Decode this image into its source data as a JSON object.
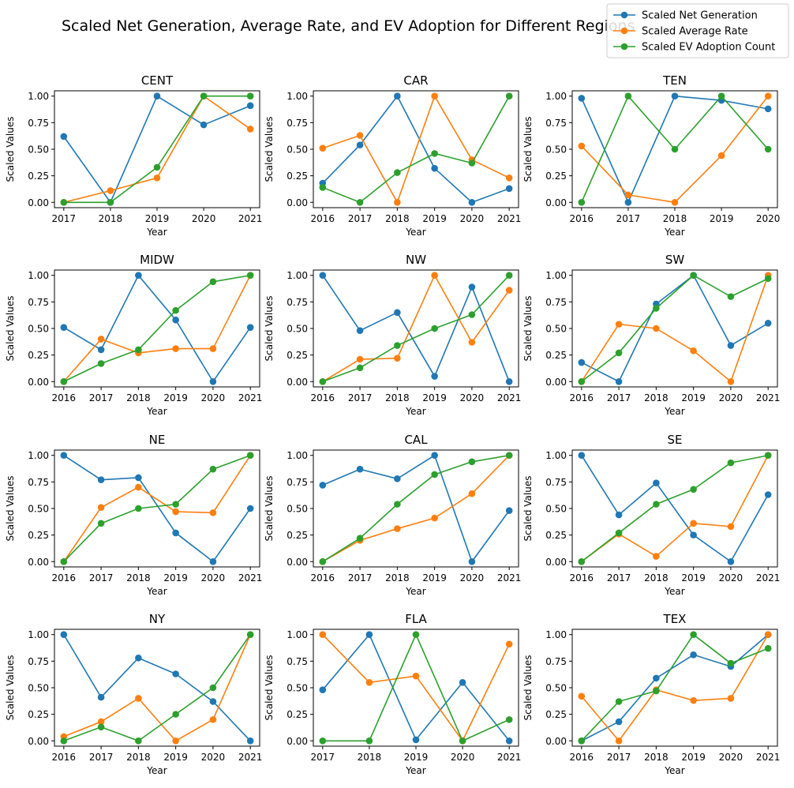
{
  "figure": {
    "title": "Scaled Net Generation, Average Rate, and EV Adoption for Different Regions"
  },
  "legend": {
    "placement": "top-right",
    "entries": [
      {
        "label": "Scaled Net Generation",
        "color": "#1f77b4"
      },
      {
        "label": "Scaled Average Rate",
        "color": "#ff7f0e"
      },
      {
        "label": "Scaled EV Adoption Count",
        "color": "#2ca02c"
      }
    ]
  },
  "chart_data": [
    {
      "type": "line",
      "title": "CENT",
      "xlabel": "Year",
      "ylabel": "Scaled Values",
      "x": [
        2017,
        2018,
        2019,
        2020,
        2021
      ],
      "ylim": [
        -0.05,
        1.05
      ],
      "yticks": [
        "0.00",
        "0.25",
        "0.50",
        "0.75",
        "1.00"
      ],
      "grid": false,
      "series": [
        {
          "name": "Scaled Net Generation",
          "color": "#1f77b4",
          "values": [
            0.62,
            0.0,
            1.0,
            0.73,
            0.91
          ]
        },
        {
          "name": "Scaled Average Rate",
          "color": "#ff7f0e",
          "values": [
            0.0,
            0.11,
            0.23,
            1.0,
            0.69
          ]
        },
        {
          "name": "Scaled EV Adoption Count",
          "color": "#2ca02c",
          "values": [
            0.0,
            0.0,
            0.33,
            1.0,
            1.0
          ]
        }
      ]
    },
    {
      "type": "line",
      "title": "CAR",
      "xlabel": "Year",
      "ylabel": "Scaled Values",
      "x": [
        2016,
        2017,
        2018,
        2019,
        2020,
        2021
      ],
      "ylim": [
        -0.05,
        1.05
      ],
      "yticks": [
        "0.00",
        "0.25",
        "0.50",
        "0.75",
        "1.00"
      ],
      "grid": false,
      "series": [
        {
          "name": "Scaled Net Generation",
          "color": "#1f77b4",
          "values": [
            0.18,
            0.54,
            1.0,
            0.32,
            0.0,
            0.13
          ]
        },
        {
          "name": "Scaled Average Rate",
          "color": "#ff7f0e",
          "values": [
            0.51,
            0.63,
            0.0,
            1.0,
            0.4,
            0.23
          ]
        },
        {
          "name": "Scaled EV Adoption Count",
          "color": "#2ca02c",
          "values": [
            0.14,
            0.0,
            0.28,
            0.46,
            0.37,
            1.0
          ]
        }
      ]
    },
    {
      "type": "line",
      "title": "TEN",
      "xlabel": "Year",
      "ylabel": "Scaled Values",
      "x": [
        2016,
        2017,
        2018,
        2019,
        2020
      ],
      "ylim": [
        -0.05,
        1.05
      ],
      "yticks": [
        "0.00",
        "0.25",
        "0.50",
        "0.75",
        "1.00"
      ],
      "grid": false,
      "series": [
        {
          "name": "Scaled Net Generation",
          "color": "#1f77b4",
          "values": [
            0.98,
            0.0,
            1.0,
            0.96,
            0.88
          ]
        },
        {
          "name": "Scaled Average Rate",
          "color": "#ff7f0e",
          "values": [
            0.53,
            0.07,
            0.0,
            0.44,
            1.0
          ]
        },
        {
          "name": "Scaled EV Adoption Count",
          "color": "#2ca02c",
          "values": [
            0.0,
            1.0,
            0.5,
            1.0,
            0.5
          ]
        }
      ]
    },
    {
      "type": "line",
      "title": "MIDW",
      "xlabel": "Year",
      "ylabel": "Scaled Values",
      "x": [
        2016,
        2017,
        2018,
        2019,
        2020,
        2021
      ],
      "ylim": [
        -0.05,
        1.05
      ],
      "yticks": [
        "0.00",
        "0.25",
        "0.50",
        "0.75",
        "1.00"
      ],
      "grid": false,
      "series": [
        {
          "name": "Scaled Net Generation",
          "color": "#1f77b4",
          "values": [
            0.51,
            0.3,
            1.0,
            0.58,
            0.0,
            0.51
          ]
        },
        {
          "name": "Scaled Average Rate",
          "color": "#ff7f0e",
          "values": [
            0.0,
            0.4,
            0.27,
            0.31,
            0.31,
            1.0
          ]
        },
        {
          "name": "Scaled EV Adoption Count",
          "color": "#2ca02c",
          "values": [
            0.0,
            0.17,
            0.3,
            0.67,
            0.94,
            1.0
          ]
        }
      ]
    },
    {
      "type": "line",
      "title": "NW",
      "xlabel": "Year",
      "ylabel": "Scaled Values",
      "x": [
        2016,
        2017,
        2018,
        2019,
        2020,
        2021
      ],
      "ylim": [
        -0.05,
        1.05
      ],
      "yticks": [
        "0.00",
        "0.25",
        "0.50",
        "0.75",
        "1.00"
      ],
      "grid": false,
      "series": [
        {
          "name": "Scaled Net Generation",
          "color": "#1f77b4",
          "values": [
            1.0,
            0.48,
            0.65,
            0.05,
            0.89,
            0.0
          ]
        },
        {
          "name": "Scaled Average Rate",
          "color": "#ff7f0e",
          "values": [
            0.0,
            0.21,
            0.22,
            1.0,
            0.37,
            0.86
          ]
        },
        {
          "name": "Scaled EV Adoption Count",
          "color": "#2ca02c",
          "values": [
            0.0,
            0.13,
            0.34,
            0.5,
            0.63,
            1.0
          ]
        }
      ]
    },
    {
      "type": "line",
      "title": "SW",
      "xlabel": "Year",
      "ylabel": "Scaled Values",
      "x": [
        2016,
        2017,
        2018,
        2019,
        2020,
        2021
      ],
      "ylim": [
        -0.05,
        1.05
      ],
      "yticks": [
        "0.00",
        "0.25",
        "0.50",
        "0.75",
        "1.00"
      ],
      "grid": false,
      "series": [
        {
          "name": "Scaled Net Generation",
          "color": "#1f77b4",
          "values": [
            0.18,
            0.0,
            0.73,
            1.0,
            0.34,
            0.55
          ]
        },
        {
          "name": "Scaled Average Rate",
          "color": "#ff7f0e",
          "values": [
            0.0,
            0.54,
            0.5,
            0.29,
            0.0,
            1.0
          ]
        },
        {
          "name": "Scaled EV Adoption Count",
          "color": "#2ca02c",
          "values": [
            0.0,
            0.27,
            0.69,
            1.0,
            0.8,
            0.97
          ]
        }
      ]
    },
    {
      "type": "line",
      "title": "NE",
      "xlabel": "Year",
      "ylabel": "Scaled Values",
      "x": [
        2016,
        2017,
        2018,
        2019,
        2020,
        2021
      ],
      "ylim": [
        -0.05,
        1.05
      ],
      "yticks": [
        "0.00",
        "0.25",
        "0.50",
        "0.75",
        "1.00"
      ],
      "grid": false,
      "series": [
        {
          "name": "Scaled Net Generation",
          "color": "#1f77b4",
          "values": [
            1.0,
            0.77,
            0.79,
            0.27,
            0.0,
            0.5
          ]
        },
        {
          "name": "Scaled Average Rate",
          "color": "#ff7f0e",
          "values": [
            0.0,
            0.51,
            0.7,
            0.47,
            0.46,
            1.0
          ]
        },
        {
          "name": "Scaled EV Adoption Count",
          "color": "#2ca02c",
          "values": [
            0.0,
            0.36,
            0.5,
            0.54,
            0.87,
            1.0
          ]
        }
      ]
    },
    {
      "type": "line",
      "title": "CAL",
      "xlabel": "Year",
      "ylabel": "Scaled Values",
      "x": [
        2016,
        2017,
        2018,
        2019,
        2020,
        2021
      ],
      "ylim": [
        -0.05,
        1.05
      ],
      "yticks": [
        "0.00",
        "0.25",
        "0.50",
        "0.75",
        "1.00"
      ],
      "grid": false,
      "series": [
        {
          "name": "Scaled Net Generation",
          "color": "#1f77b4",
          "values": [
            0.72,
            0.87,
            0.78,
            1.0,
            0.0,
            0.48
          ]
        },
        {
          "name": "Scaled Average Rate",
          "color": "#ff7f0e",
          "values": [
            0.0,
            0.2,
            0.31,
            0.41,
            0.64,
            1.0
          ]
        },
        {
          "name": "Scaled EV Adoption Count",
          "color": "#2ca02c",
          "values": [
            0.0,
            0.22,
            0.54,
            0.82,
            0.94,
            1.0
          ]
        }
      ]
    },
    {
      "type": "line",
      "title": "SE",
      "xlabel": "Year",
      "ylabel": "Scaled Values",
      "x": [
        2016,
        2017,
        2018,
        2019,
        2020,
        2021
      ],
      "ylim": [
        -0.05,
        1.05
      ],
      "yticks": [
        "0.00",
        "0.25",
        "0.50",
        "0.75",
        "1.00"
      ],
      "grid": false,
      "series": [
        {
          "name": "Scaled Net Generation",
          "color": "#1f77b4",
          "values": [
            1.0,
            0.44,
            0.74,
            0.25,
            0.0,
            0.63
          ]
        },
        {
          "name": "Scaled Average Rate",
          "color": "#ff7f0e",
          "values": [
            0.0,
            0.26,
            0.05,
            0.36,
            0.33,
            1.0
          ]
        },
        {
          "name": "Scaled EV Adoption Count",
          "color": "#2ca02c",
          "values": [
            0.0,
            0.27,
            0.54,
            0.68,
            0.93,
            1.0
          ]
        }
      ]
    },
    {
      "type": "line",
      "title": "NY",
      "xlabel": "Year",
      "ylabel": "Scaled Values",
      "x": [
        2016,
        2017,
        2018,
        2019,
        2020,
        2021
      ],
      "ylim": [
        -0.05,
        1.05
      ],
      "yticks": [
        "0.00",
        "0.25",
        "0.50",
        "0.75",
        "1.00"
      ],
      "grid": false,
      "series": [
        {
          "name": "Scaled Net Generation",
          "color": "#1f77b4",
          "values": [
            1.0,
            0.41,
            0.78,
            0.63,
            0.37,
            0.0
          ]
        },
        {
          "name": "Scaled Average Rate",
          "color": "#ff7f0e",
          "values": [
            0.04,
            0.18,
            0.4,
            0.0,
            0.2,
            1.0
          ]
        },
        {
          "name": "Scaled EV Adoption Count",
          "color": "#2ca02c",
          "values": [
            0.0,
            0.13,
            0.0,
            0.25,
            0.5,
            1.0
          ]
        }
      ]
    },
    {
      "type": "line",
      "title": "FLA",
      "xlabel": "Year",
      "ylabel": "Scaled Values",
      "x": [
        2017,
        2018,
        2019,
        2020,
        2021
      ],
      "ylim": [
        -0.05,
        1.05
      ],
      "yticks": [
        "0.00",
        "0.25",
        "0.50",
        "0.75",
        "1.00"
      ],
      "grid": false,
      "series": [
        {
          "name": "Scaled Net Generation",
          "color": "#1f77b4",
          "values": [
            0.48,
            1.0,
            0.01,
            0.55,
            0.0
          ]
        },
        {
          "name": "Scaled Average Rate",
          "color": "#ff7f0e",
          "values": [
            1.0,
            0.55,
            0.61,
            0.0,
            0.91
          ]
        },
        {
          "name": "Scaled EV Adoption Count",
          "color": "#2ca02c",
          "values": [
            0.0,
            0.0,
            1.0,
            0.0,
            0.2
          ]
        }
      ]
    },
    {
      "type": "line",
      "title": "TEX",
      "xlabel": "Year",
      "ylabel": "Scaled Values",
      "x": [
        2016,
        2017,
        2018,
        2019,
        2020,
        2021
      ],
      "ylim": [
        -0.05,
        1.05
      ],
      "yticks": [
        "0.00",
        "0.25",
        "0.50",
        "0.75",
        "1.00"
      ],
      "grid": false,
      "series": [
        {
          "name": "Scaled Net Generation",
          "color": "#1f77b4",
          "values": [
            0.0,
            0.18,
            0.59,
            0.81,
            0.7,
            1.0
          ]
        },
        {
          "name": "Scaled Average Rate",
          "color": "#ff7f0e",
          "values": [
            0.42,
            0.0,
            0.48,
            0.38,
            0.4,
            1.0
          ]
        },
        {
          "name": "Scaled EV Adoption Count",
          "color": "#2ca02c",
          "values": [
            0.0,
            0.37,
            0.47,
            1.0,
            0.73,
            0.87
          ]
        }
      ]
    }
  ]
}
